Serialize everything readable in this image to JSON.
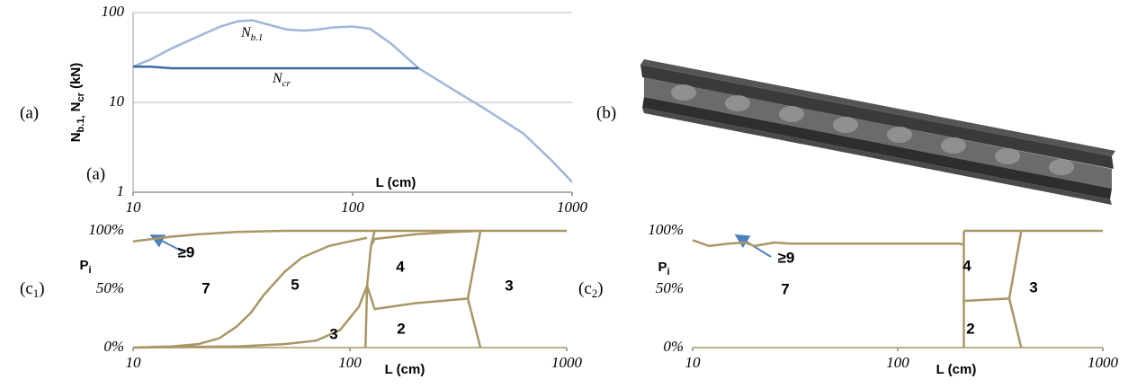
{
  "panel_labels": {
    "a": "(a)",
    "b": "(b)",
    "c1": [
      {
        "text": "(c"
      },
      {
        "sub": "1"
      },
      {
        "text": ")"
      }
    ],
    "c2": [
      {
        "text": "(c"
      },
      {
        "sub": "2"
      },
      {
        "text": ")"
      }
    ]
  },
  "chart_data": [
    {
      "type": "line",
      "inner_label": "(a)",
      "y_label": [
        {
          "text": "N"
        },
        {
          "sub": "b.1,"
        },
        {
          "text": " N"
        },
        {
          "sub": "cr"
        },
        {
          "text": " (kN)"
        }
      ],
      "x_label": "L (cm)",
      "xlog": true,
      "ylog": true,
      "xlim": [
        10,
        1000
      ],
      "ylim": [
        1,
        100
      ],
      "xticks": [
        10,
        100,
        1000
      ],
      "yticks": [
        1,
        10,
        100
      ],
      "grid": true,
      "annotations": [
        [
          {
            "text": "N"
          },
          {
            "sub": "b.1"
          }
        ],
        [
          {
            "text": "N"
          },
          {
            "sub": "cr"
          }
        ]
      ],
      "series": [
        {
          "color": "#9fb6d9",
          "x": [
            10,
            12,
            15,
            20,
            25,
            30,
            35,
            40,
            50,
            60,
            70,
            80,
            100,
            120,
            150,
            200,
            300,
            400,
            600,
            800,
            1000
          ],
          "values": [
            25,
            30,
            40,
            55,
            70,
            80,
            82,
            75,
            65,
            63,
            65,
            68,
            70,
            66,
            45,
            24,
            13,
            8.5,
            4.5,
            2.3,
            1.3
          ]
        },
        {
          "color": "#3c6aa6",
          "x": [
            10,
            12,
            15,
            20,
            30,
            50,
            100,
            200
          ],
          "values": [
            25,
            25,
            24,
            24,
            24,
            24,
            24,
            24
          ]
        }
      ]
    },
    {
      "type": "line",
      "y_label": [
        {
          "text": "P"
        },
        {
          "sub": "i"
        }
      ],
      "x_label": "L (cm)",
      "xlog": true,
      "ylog": false,
      "xlim": [
        10,
        1000
      ],
      "ylim": [
        0,
        100
      ],
      "xticks": [
        10,
        100,
        1000
      ],
      "yticks": [
        {
          "value": 0,
          "label": "0%"
        },
        {
          "value": 50,
          "label": "50%"
        },
        {
          "value": 100,
          "label": "100%"
        }
      ],
      "grid": false,
      "annotations": [
        "7",
        "5",
        "4",
        "3",
        "2",
        "3",
        "≥9"
      ],
      "series": [
        {
          "color": "#a89664",
          "x": [
            10,
            15,
            20,
            30,
            50,
            100,
            1000
          ],
          "values": [
            91,
            95,
            97,
            99,
            100,
            100,
            100
          ]
        },
        {
          "color": "#a89664",
          "x": [
            10,
            15,
            20,
            25,
            30,
            35,
            40,
            50,
            60,
            80,
            100,
            120
          ],
          "values": [
            0,
            1,
            3,
            8,
            18,
            30,
            45,
            65,
            77,
            87,
            91,
            94
          ]
        },
        {
          "color": "#a89664",
          "x": [
            10,
            30,
            50,
            70,
            90,
            110,
            120,
            125,
            130,
            200,
            300,
            400
          ],
          "values": [
            0,
            1,
            3,
            6,
            15,
            35,
            53,
            87,
            93,
            97,
            99,
            100
          ]
        },
        {
          "color": "#a89664",
          "x": [
            118,
            120,
            130,
            200,
            350
          ],
          "values": [
            0,
            53,
            33,
            38,
            42
          ]
        },
        {
          "color": "#a89664",
          "x": [
            125,
            130
          ],
          "values": [
            87,
            100
          ]
        },
        {
          "color": "#a89664",
          "x": [
            400,
            350,
            400
          ],
          "values": [
            100,
            42,
            0
          ]
        }
      ]
    },
    {
      "type": "line",
      "y_label": [
        {
          "text": "P"
        },
        {
          "sub": "i"
        }
      ],
      "x_label": "L (cm)",
      "xlog": true,
      "ylog": false,
      "xlim": [
        10,
        1000
      ],
      "ylim": [
        0,
        100
      ],
      "xticks": [
        10,
        100,
        1000
      ],
      "yticks": [
        {
          "value": 0,
          "label": "0%"
        },
        {
          "value": 50,
          "label": "50%"
        },
        {
          "value": 100,
          "label": "100%"
        }
      ],
      "grid": false,
      "annotations": [
        "7",
        "4",
        "3",
        "2",
        "≥9"
      ],
      "series": [
        {
          "color": "#a89664",
          "x": [
            10,
            12,
            15,
            18,
            20,
            25,
            30,
            50,
            100,
            200,
            210
          ],
          "values": [
            92,
            87,
            89,
            90,
            87,
            90,
            89,
            89,
            89,
            89,
            88
          ]
        },
        {
          "color": "#a89664",
          "x": [
            210,
            210
          ],
          "values": [
            0,
            100
          ]
        },
        {
          "color": "#a89664",
          "x": [
            210,
            1000
          ],
          "values": [
            100,
            100
          ]
        },
        {
          "color": "#a89664",
          "x": [
            212,
            350
          ],
          "values": [
            40,
            42
          ]
        },
        {
          "color": "#a89664",
          "x": [
            400,
            350,
            400
          ],
          "values": [
            100,
            42,
            0
          ]
        }
      ]
    }
  ]
}
